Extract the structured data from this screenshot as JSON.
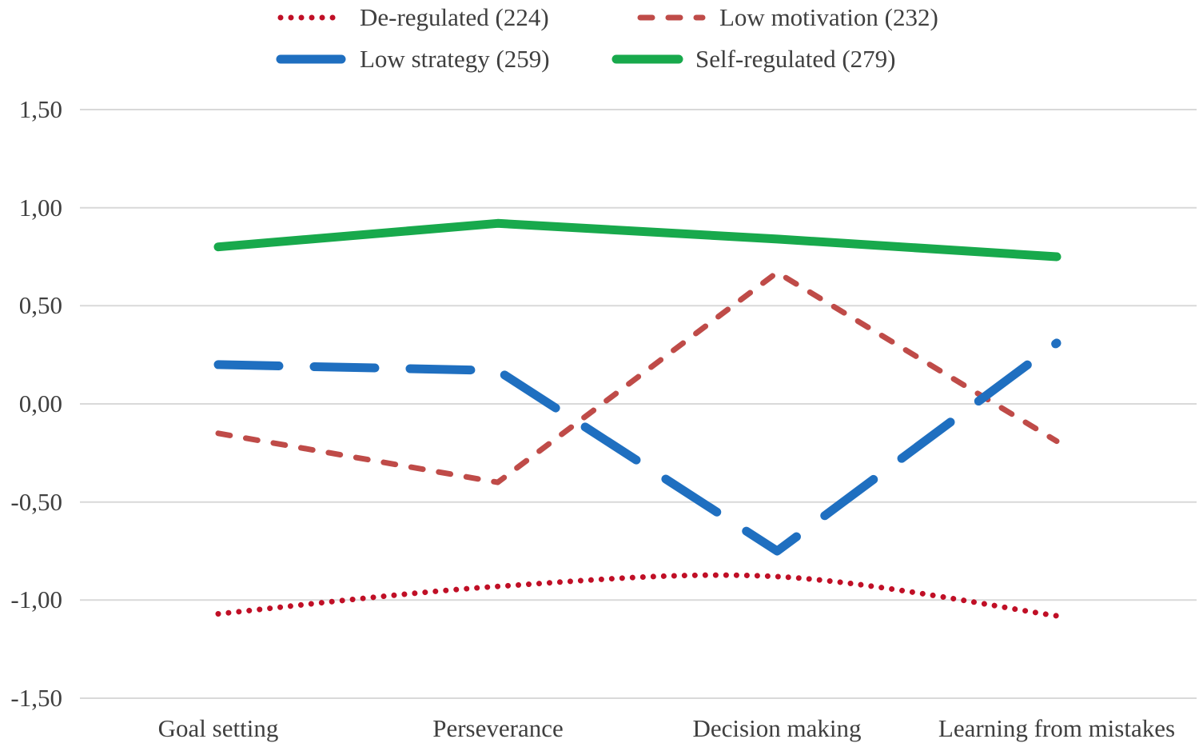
{
  "chart_data": {
    "type": "line",
    "title": "",
    "xlabel": "",
    "ylabel": "",
    "categories": [
      "Goal setting",
      "Perseverance",
      "Decision making",
      "Learning from mistakes"
    ],
    "series": [
      {
        "name": "De-regulated",
        "legend_label": "De-regulated (224)",
        "values": [
          -1.07,
          -0.93,
          -0.88,
          -1.08
        ],
        "color": "#C00F26",
        "line_style": "dotted",
        "width": 7,
        "dash": "0.01 13",
        "smooth": true
      },
      {
        "name": "Low motivation",
        "legend_label": "Low motivation (232)",
        "values": [
          -0.15,
          -0.4,
          0.67,
          -0.19
        ],
        "color": "#BF4B48",
        "line_style": "dashed",
        "width": 7,
        "dash": "15 20",
        "smooth": false
      },
      {
        "name": "Low strategy",
        "legend_label": "Low strategy (259)",
        "values": [
          0.2,
          0.17,
          -0.75,
          0.31
        ],
        "color": "#1F6FC0",
        "line_style": "long-dash",
        "width": 11,
        "dash": "76 44",
        "smooth": false
      },
      {
        "name": "Self-regulated",
        "legend_label": "Self-regulated (279)",
        "values": [
          0.8,
          0.92,
          0.84,
          0.75
        ],
        "color": "#18A94C",
        "line_style": "solid",
        "width": 11,
        "dash": null,
        "smooth": false
      }
    ],
    "yticks": [
      {
        "label": "1,50",
        "value": 1.5
      },
      {
        "label": "1,00",
        "value": 1.0
      },
      {
        "label": "0,50",
        "value": 0.5
      },
      {
        "label": "0,00",
        "value": 0.0
      },
      {
        "label": "-0,50",
        "value": -0.5
      },
      {
        "label": "-1,00",
        "value": -1.0
      },
      {
        "label": "-1,50",
        "value": -1.5
      }
    ],
    "ylim": [
      -1.5,
      1.5
    ],
    "grid": "horizontal",
    "gridline_color": "#D9D9D9",
    "legend_position": "top",
    "text_color": "#3F3F3F"
  }
}
